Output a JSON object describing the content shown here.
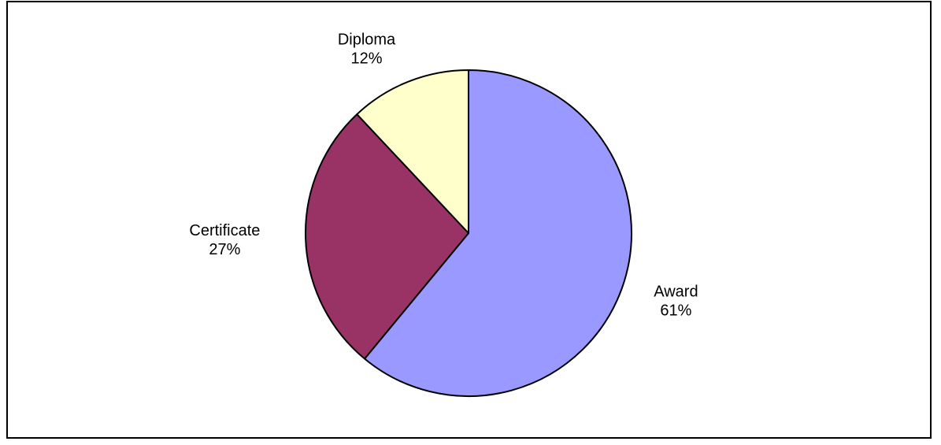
{
  "chart_data": {
    "type": "pie",
    "title": "",
    "slices": [
      {
        "label": "Award",
        "value": 61,
        "percent_label": "61%",
        "color": "#9999ff"
      },
      {
        "label": "Certificate",
        "value": 27,
        "percent_label": "27%",
        "color": "#993366"
      },
      {
        "label": "Diploma",
        "value": 12,
        "percent_label": "12%",
        "color": "#ffffcc"
      }
    ],
    "start": "12 o'clock",
    "direction": "clockwise",
    "legend": "none",
    "data_labels": "outside, category name and percentage"
  }
}
